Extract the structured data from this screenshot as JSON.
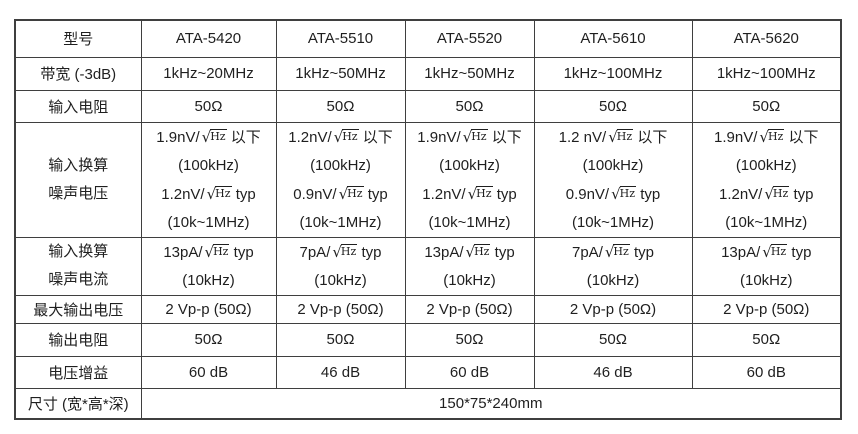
{
  "colors": {
    "border": "#3f3f3f",
    "text": "#1f1f1f",
    "background": "#ffffff"
  },
  "table": {
    "header_row": {
      "label": "型号",
      "models": [
        "ATA-5420",
        "ATA-5510",
        "ATA-5520",
        "ATA-5610",
        "ATA-5620"
      ]
    },
    "rows": {
      "bandwidth": {
        "label": "带宽 (-3dB)",
        "values": [
          "1kHz~20MHz",
          "1kHz~50MHz",
          "1kHz~50MHz",
          "1kHz~100MHz",
          "1kHz~100MHz"
        ]
      },
      "input_resistance": {
        "label": "输入电阻",
        "values": [
          "50Ω",
          "50Ω",
          "50Ω",
          "50Ω",
          "50Ω"
        ]
      },
      "noise_voltage": {
        "label_lines": [
          "输入换算",
          "噪声电压"
        ],
        "cells": [
          [
            "1.9nV/√Hz 以下",
            "(100kHz)",
            "1.2nV/√Hz typ",
            "(10k~1MHz)"
          ],
          [
            "1.2nV/√Hz 以下",
            "(100kHz)",
            "0.9nV/√Hz typ",
            "(10k~1MHz)"
          ],
          [
            "1.9nV/√Hz 以下",
            "(100kHz)",
            "1.2nV/√Hz typ",
            "(10k~1MHz)"
          ],
          [
            "1.2 nV/√Hz 以下",
            "(100kHz)",
            "0.9nV/√Hz typ",
            "(10k~1MHz)"
          ],
          [
            "1.9nV/√Hz 以下",
            "(100kHz)",
            "1.2nV/√Hz typ",
            "(10k~1MHz)"
          ]
        ]
      },
      "noise_current": {
        "label_lines": [
          "输入换算",
          "噪声电流"
        ],
        "cells": [
          [
            "13pA/√Hz typ",
            "(10kHz)"
          ],
          [
            "7pA/√Hz typ",
            "(10kHz)"
          ],
          [
            "13pA/√Hz typ",
            "(10kHz)"
          ],
          [
            "7pA/√Hz typ",
            "(10kHz)"
          ],
          [
            "13pA/√Hz typ",
            "(10kHz)"
          ]
        ]
      },
      "max_output_voltage": {
        "label": "最大输出电压",
        "values": [
          "2 Vp-p (50Ω)",
          "2 Vp-p (50Ω)",
          "2 Vp-p (50Ω)",
          "2 Vp-p (50Ω)",
          "2 Vp-p (50Ω)"
        ]
      },
      "output_resistance": {
        "label": "输出电阻",
        "values": [
          "50Ω",
          "50Ω",
          "50Ω",
          "50Ω",
          "50Ω"
        ]
      },
      "voltage_gain": {
        "label": "电压增益",
        "values": [
          "60 dB",
          "46 dB",
          "60 dB",
          "46 dB",
          "60 dB"
        ]
      },
      "dimensions": {
        "label": "尺寸 (宽*高*深)",
        "value": "150*75*240mm"
      }
    }
  }
}
